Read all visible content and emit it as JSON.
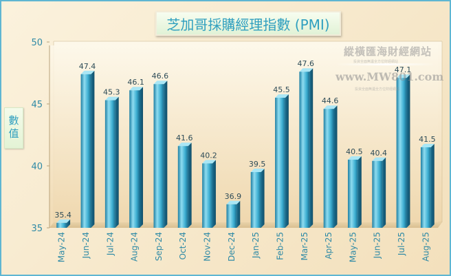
{
  "colors": {
    "bar_light": "#8fdcf0",
    "bar_mid": "#3fb0d3",
    "bar_dark": "#1f7fa3",
    "text_teal": "#2f9fbf",
    "value_text": "#2d4b57",
    "axis_text": "#2f8aa6"
  },
  "watermark": {
    "name": "縱橫匯海財經網站",
    "sub1": "投資全面無遺全方位財經網站",
    "url": "www.MW801.com",
    "sub2": "投資全面無遺全方位財經網站"
  },
  "chart_data": {
    "type": "bar",
    "title": "芝加哥採購經理指數 (PMI)",
    "xlabel": "",
    "ylabel": "數值",
    "ylim": [
      35,
      50
    ],
    "yticks": [
      35,
      40,
      45,
      50
    ],
    "categories": [
      "May-24",
      "Jun-24",
      "Jul-24",
      "Aug-24",
      "Sep-24",
      "Oct-24",
      "Nov-24",
      "Dec-24",
      "Jan-25",
      "Feb-25",
      "Mar-25",
      "Apr-25",
      "May-25",
      "Jun-25",
      "Jul-25",
      "Aug-25"
    ],
    "values": [
      35.4,
      47.4,
      45.3,
      46.1,
      46.6,
      41.6,
      40.2,
      36.9,
      39.5,
      45.5,
      47.6,
      44.6,
      40.5,
      40.4,
      47.1,
      41.5
    ],
    "value_labels": [
      "35.4",
      "47.4",
      "45.3",
      "46.1",
      "46.6",
      "41.6",
      "40.2",
      "36.9",
      "39.5",
      "45.5",
      "47.6",
      "44.6",
      "40.5",
      "40.4",
      "47.1",
      "41.5"
    ],
    "grid": false,
    "legend": "none"
  }
}
